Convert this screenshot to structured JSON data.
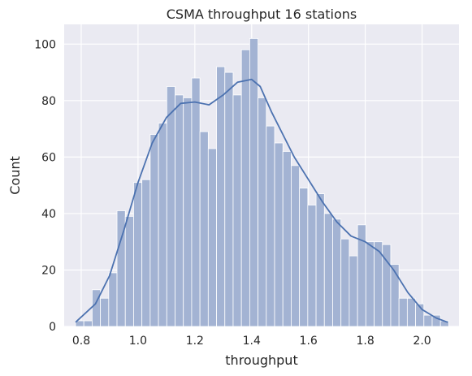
{
  "chart_data": {
    "type": "bar",
    "subtype": "histogram-with-kde",
    "title": "CSMA throughput 16 stations",
    "xlabel": "throughput",
    "ylabel": "Count",
    "xlim": [
      0.74,
      2.13
    ],
    "ylim": [
      0,
      107
    ],
    "xticks": [
      0.8,
      1.0,
      1.2,
      1.4,
      1.6,
      1.8,
      2.0
    ],
    "xtick_labels": [
      "0.8",
      "1.0",
      "1.2",
      "1.4",
      "1.6",
      "1.8",
      "2.0"
    ],
    "yticks": [
      0,
      20,
      40,
      60,
      80,
      100
    ],
    "ytick_labels": [
      "0",
      "20",
      "40",
      "60",
      "80",
      "100"
    ],
    "grid": true,
    "bin_start": 0.78,
    "bin_width": 0.0292,
    "counts": [
      2,
      2,
      13,
      10,
      19,
      41,
      39,
      51,
      52,
      68,
      72,
      85,
      82,
      81,
      88,
      69,
      63,
      92,
      90,
      82,
      98,
      102,
      81,
      71,
      65,
      62,
      57,
      49,
      43,
      47,
      40,
      38,
      31,
      25,
      36,
      30,
      30,
      29,
      22,
      10,
      10,
      8,
      4,
      4,
      2
    ],
    "kde": {
      "x": [
        0.78,
        0.85,
        0.9,
        0.95,
        1.0,
        1.05,
        1.1,
        1.15,
        1.2,
        1.25,
        1.3,
        1.35,
        1.4,
        1.43,
        1.47,
        1.5,
        1.55,
        1.6,
        1.65,
        1.7,
        1.75,
        1.8,
        1.85,
        1.9,
        1.95,
        2.0,
        2.05,
        2.09
      ],
      "y": [
        1.5,
        8,
        18,
        34,
        51,
        65,
        74,
        79,
        79.5,
        78.5,
        82,
        86.5,
        87.5,
        85,
        76,
        70,
        60,
        52,
        44,
        37,
        32,
        30,
        26.5,
        20,
        12,
        6,
        3,
        1.5
      ]
    },
    "colors": {
      "background": "#eaeaf2",
      "grid": "#ffffff",
      "bar_fill": "#a3b3d3",
      "bar_edge": "#ffffff",
      "kde_line": "#4c72b0",
      "text": "#262626"
    }
  }
}
